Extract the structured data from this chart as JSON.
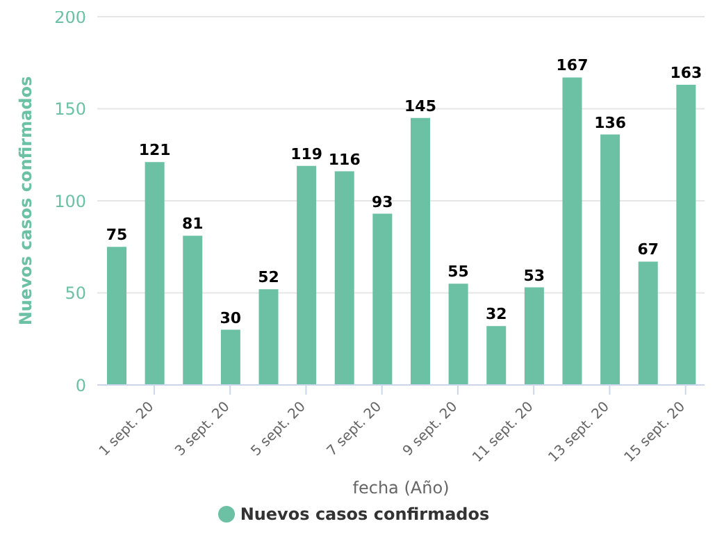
{
  "chart_data": {
    "type": "bar",
    "xlabel": "fecha (Año)",
    "ylabel": "Nuevos casos confirmados",
    "categories": [
      null,
      "1 sept. 20",
      null,
      "3 sept. 20",
      null,
      "5 sept. 20",
      null,
      "7 sept. 20",
      null,
      "9 sept. 20",
      null,
      "11 sept. 20",
      null,
      "13 sept. 20",
      null,
      "15 sept. 20"
    ],
    "series": [
      {
        "name": "Nuevos casos confirmados",
        "color": "#6cc0a4",
        "values": [
          75,
          121,
          81,
          30,
          52,
          119,
          116,
          93,
          145,
          55,
          32,
          53,
          167,
          136,
          67,
          163
        ]
      }
    ],
    "ylim": [
      0,
      200
    ],
    "yticks": [
      0,
      50,
      100,
      150,
      200
    ],
    "grid": "y",
    "legend": "bottom",
    "data_labels": true
  }
}
